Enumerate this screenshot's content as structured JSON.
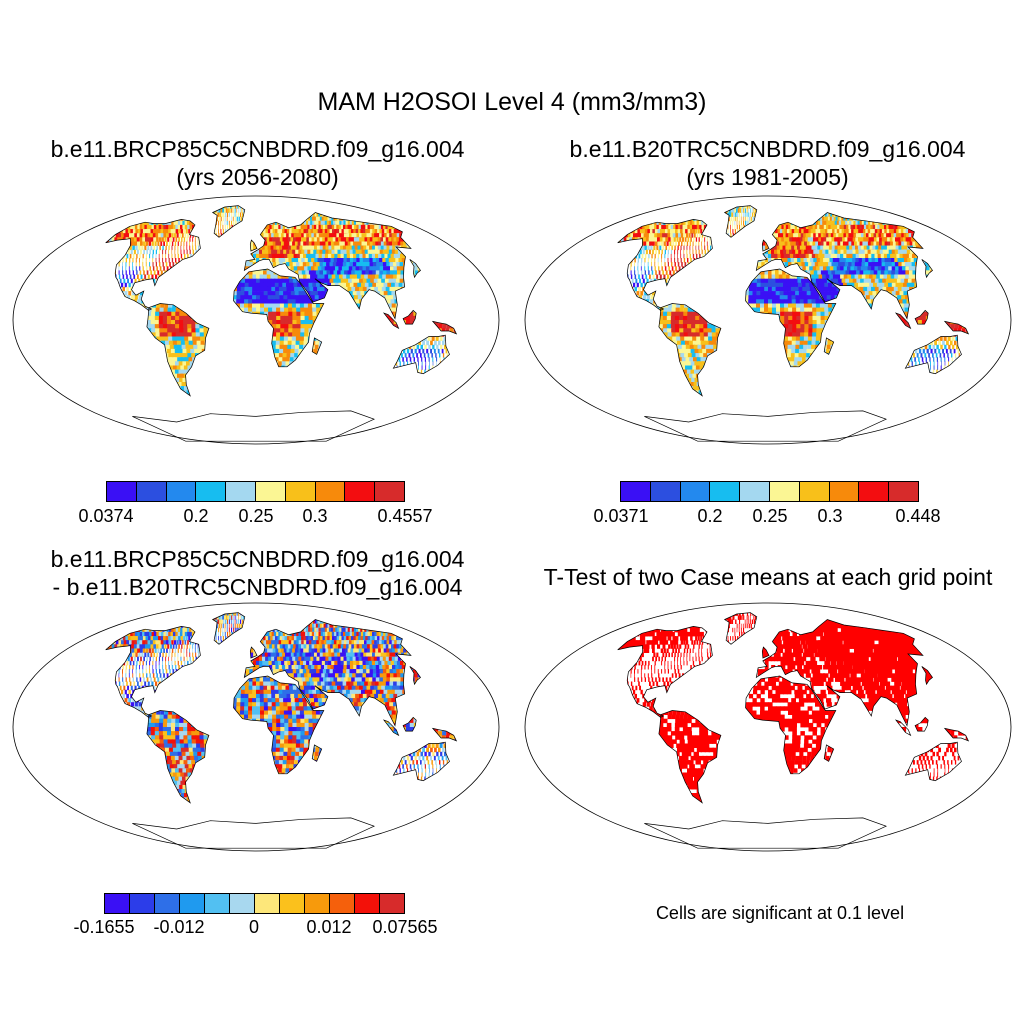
{
  "title": "MAM H2OSOI Level 4 (mm3/mm3)",
  "panels": {
    "top_left": {
      "title_line1": "b.e11.BRCP85C5CNBDRD.f09_g16.004",
      "title_line2": "(yrs 2056-2080)",
      "colors": [
        "#3a10f5",
        "#2c4fe0",
        "#2389ee",
        "#17bdf0",
        "#a4d8f0",
        "#fbf694",
        "#f8c01a",
        "#f78a0b",
        "#f30d10",
        "#d72b2b"
      ],
      "labels": [
        "0.0374",
        "0.2",
        "0.25",
        "0.3",
        "0.4557"
      ]
    },
    "top_right": {
      "title_line1": "b.e11.B20TRC5CNBDRD.f09_g16.004",
      "title_line2": "(yrs 1981-2005)",
      "colors": [
        "#3a10f5",
        "#2c4fe0",
        "#2389ee",
        "#17bdf0",
        "#a4d8f0",
        "#fbf694",
        "#f8c01a",
        "#f78a0b",
        "#f30d10",
        "#d72b2b"
      ],
      "labels": [
        "0.0371",
        "0.2",
        "0.25",
        "0.3",
        "0.448"
      ]
    },
    "bottom_left": {
      "title_line1": "b.e11.BRCP85C5CNBDRD.f09_g16.004",
      "title_line2": "- b.e11.B20TRC5CNBDRD.f09_g16.004",
      "colors": [
        "#3a10f5",
        "#2c3de9",
        "#2e6fe8",
        "#1f9aef",
        "#52c0f2",
        "#a8d8ef",
        "#fde77a",
        "#fbc11c",
        "#f79a0c",
        "#f5600c",
        "#f31109",
        "#d72b2b"
      ],
      "labels": [
        "-0.1655",
        "-0.012",
        "0",
        "0.012",
        "0.07565"
      ]
    },
    "bottom_right": {
      "title_line1": "T-Test of two Case means at each grid point",
      "note": "Cells are significant at 0.1 level",
      "color": "#ff0000"
    }
  }
}
